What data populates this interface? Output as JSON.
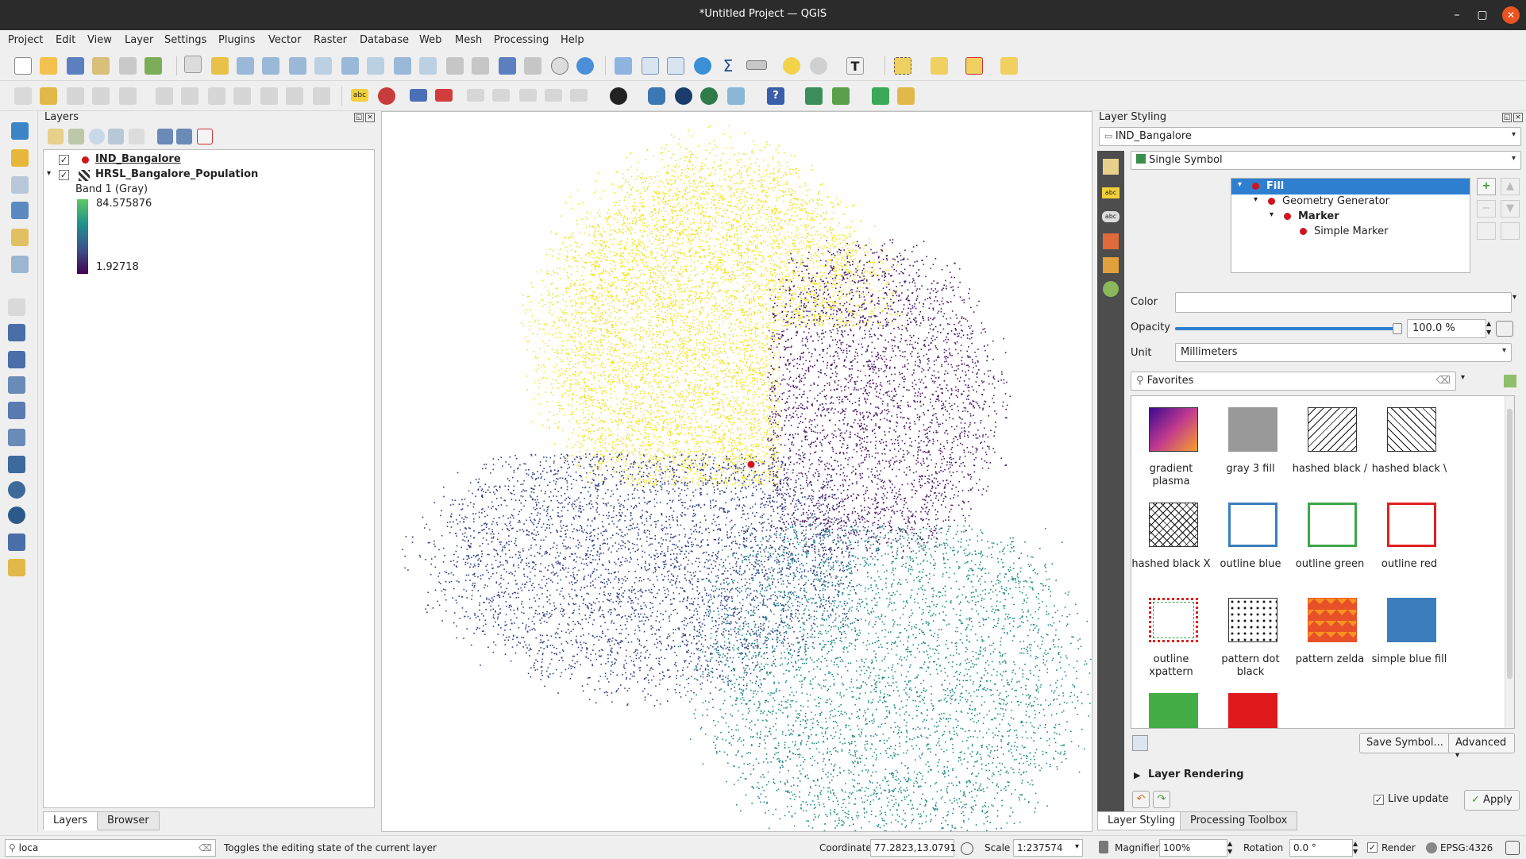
{
  "window": {
    "title": "*Untitled Project — QGIS"
  },
  "menu": [
    "Project",
    "Edit",
    "View",
    "Layer",
    "Settings",
    "Plugins",
    "Vector",
    "Raster",
    "Database",
    "Web",
    "Mesh",
    "Processing",
    "Help"
  ],
  "layers_panel": {
    "title": "Layers",
    "layers": [
      {
        "name": "IND_Bangalore",
        "checked": "✓"
      },
      {
        "name": "HRSL_Bangalore_Population",
        "checked": "✓",
        "band": "Band 1 (Gray)",
        "max": "84.575876",
        "min": "1.92718"
      }
    ],
    "tabs": [
      "Layers",
      "Browser"
    ]
  },
  "styling": {
    "title": "Layer Styling",
    "layer": "IND_Bangalore",
    "renderer": "Single Symbol",
    "tree": [
      "Fill",
      "Geometry Generator",
      "Marker",
      "Simple Marker"
    ],
    "color_label": "Color",
    "opacity_label": "Opacity",
    "opacity_value": "100.0 %",
    "opacity_fraction": 1.0,
    "unit_label": "Unit",
    "unit_value": "Millimeters",
    "search_value": "Favorites",
    "symbols": [
      {
        "label": "gradient plasma"
      },
      {
        "label": "gray 3 fill"
      },
      {
        "label": "hashed black /"
      },
      {
        "label": "hashed black \\"
      },
      {
        "label": "hashed black X"
      },
      {
        "label": "outline blue"
      },
      {
        "label": "outline green"
      },
      {
        "label": "outline red"
      },
      {
        "label": "outline xpattern"
      },
      {
        "label": "pattern dot black"
      },
      {
        "label": "pattern zelda"
      },
      {
        "label": "simple blue fill"
      }
    ],
    "save_button": "Save Symbol...",
    "advanced_button": "Advanced",
    "layer_rendering": "Layer Rendering",
    "live_update": "Live update",
    "apply_button": "Apply",
    "tabs": [
      "Layer Styling",
      "Processing Toolbox"
    ]
  },
  "status": {
    "search_value": "loca",
    "message": "Toggles the editing state of the current layer",
    "coordinate_label": "Coordinate",
    "coordinate": "77.2823,13.0791",
    "scale_label": "Scale",
    "scale": "1:237574",
    "magnifier_label": "Magnifier",
    "magnifier": "100%",
    "rotation_label": "Rotation",
    "rotation": "0.0 °",
    "render_label": "Render",
    "crs": "EPSG:4326"
  },
  "colors": {
    "yellow": "#f5e21a",
    "purple": "#4a1667",
    "navy": "#2f3f86",
    "teal": "#1f8a8a",
    "selection": "#2f7fd1"
  }
}
